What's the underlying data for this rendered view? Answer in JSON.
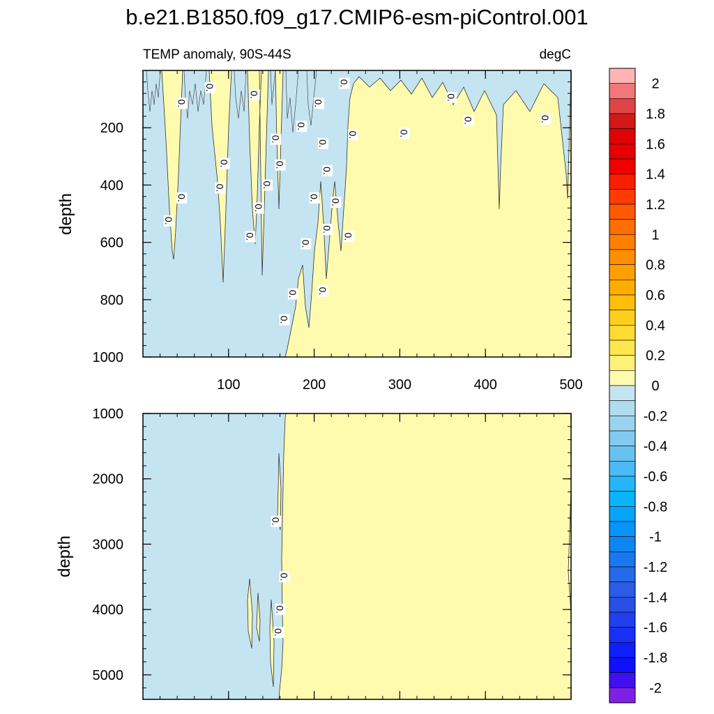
{
  "chart_data": {
    "type": "contour",
    "title": "b.e21.B1850.f09_g17.CMIP6-esm-piControl.001",
    "subtitle_left": "TEMP anomaly, 90S-44S",
    "subtitle_right": "degC",
    "xlim": [
      0,
      500
    ],
    "x_ticks": [
      100,
      200,
      300,
      400,
      500
    ],
    "x_tick_labels": [
      "100",
      "200",
      "300",
      "400",
      "500"
    ],
    "panels": [
      {
        "name": "upper",
        "ylabel": "depth",
        "ylim": [
          0,
          1000
        ],
        "y_ticks": [
          200,
          400,
          600,
          800,
          1000
        ],
        "y_tick_labels": [
          "200",
          "400",
          "600",
          "800",
          "1000"
        ],
        "regions": [
          {
            "value_range": "-0.1 to 0",
            "description": "negative anomaly",
            "x_from": 0,
            "x_to": 165
          },
          {
            "value_range": "0 to 0.1",
            "description": "positive anomaly",
            "x_from": 165,
            "x_to": 500
          }
        ],
        "contour_labels": [
          {
            "text": "0.",
            "x": 45,
            "y": 115
          },
          {
            "text": "0.",
            "x": 78,
            "y": 60
          },
          {
            "text": "0.",
            "x": 130,
            "y": 85
          },
          {
            "text": "0.",
            "x": 235,
            "y": 45
          },
          {
            "text": "0.",
            "x": 360,
            "y": 95
          },
          {
            "text": "0.",
            "x": 205,
            "y": 115
          },
          {
            "text": "0.",
            "x": 185,
            "y": 195
          },
          {
            "text": "0.",
            "x": 155,
            "y": 240
          },
          {
            "text": "0.",
            "x": 245,
            "y": 225
          },
          {
            "text": "0.",
            "x": 305,
            "y": 220
          },
          {
            "text": "0.",
            "x": 380,
            "y": 175
          },
          {
            "text": "0.",
            "x": 470,
            "y": 170
          },
          {
            "text": "0.",
            "x": 95,
            "y": 325
          },
          {
            "text": "0.",
            "x": 160,
            "y": 330
          },
          {
            "text": "0.",
            "x": 210,
            "y": 255
          },
          {
            "text": "0.",
            "x": 215,
            "y": 350
          },
          {
            "text": "0.",
            "x": 90,
            "y": 410
          },
          {
            "text": "0.",
            "x": 145,
            "y": 400
          },
          {
            "text": "0.",
            "x": 45,
            "y": 445
          },
          {
            "text": "0.",
            "x": 200,
            "y": 445
          },
          {
            "text": "0.",
            "x": 225,
            "y": 460
          },
          {
            "text": "0.",
            "x": 30,
            "y": 525
          },
          {
            "text": "0.",
            "x": 135,
            "y": 480
          },
          {
            "text": "0.",
            "x": 215,
            "y": 555
          },
          {
            "text": "0.",
            "x": 125,
            "y": 580
          },
          {
            "text": "0.",
            "x": 240,
            "y": 580
          },
          {
            "text": "0.",
            "x": 190,
            "y": 605
          },
          {
            "text": "0.",
            "x": 175,
            "y": 780
          },
          {
            "text": "0.",
            "x": 210,
            "y": 770
          },
          {
            "text": "0.",
            "x": 165,
            "y": 870
          }
        ]
      },
      {
        "name": "lower",
        "ylabel": "depth",
        "ylim": [
          1000,
          5375
        ],
        "y_ticks": [
          1000,
          2000,
          3000,
          4000,
          5000
        ],
        "y_tick_labels": [
          "1000",
          "2000",
          "3000",
          "4000",
          "5000"
        ],
        "regions": [
          {
            "value_range": "-0.1 to 0",
            "description": "negative anomaly",
            "x_from": 0,
            "x_to": 165
          },
          {
            "value_range": "0 to 0.1",
            "description": "positive anomaly",
            "x_from": 165,
            "x_to": 500
          }
        ],
        "contour_labels": [
          {
            "text": "0.",
            "x": 155,
            "y": 2650
          },
          {
            "text": "0.",
            "x": 165,
            "y": 3500
          },
          {
            "text": "0.",
            "x": 160,
            "y": 4000
          },
          {
            "text": "0.",
            "x": 158,
            "y": 4350
          }
        ]
      }
    ],
    "colorbar": {
      "label_values": [
        "2",
        "1.8",
        "1.6",
        "1.4",
        "1.2",
        "1",
        "0.8",
        "0.6",
        "0.4",
        "0.2",
        "0",
        "-0.2",
        "-0.4",
        "-0.6",
        "-0.8",
        "-1",
        "-1.2",
        "-1.4",
        "-1.6",
        "-1.8",
        "-2"
      ],
      "colors": [
        "#feb4b4",
        "#f07878",
        "#e04545",
        "#d21818",
        "#dc0404",
        "#e60000",
        "#f00000",
        "#fa1e00",
        "#ff3c00",
        "#ff5a00",
        "#ff6e00",
        "#ff7f00",
        "#ff8f00",
        "#ffa000",
        "#ffae00",
        "#ffbe0a",
        "#ffce1e",
        "#ffdc32",
        "#ffe650",
        "#fff078",
        "#fefbaf",
        "#c5e4f2",
        "#b0dcf0",
        "#9ad3ef",
        "#82caf0",
        "#68c2f0",
        "#4cbaf4",
        "#24b6f8",
        "#0ab4fa",
        "#08a4fa",
        "#0894f8",
        "#0e86f2",
        "#1a78ee",
        "#246aea",
        "#2a5ce6",
        "#2850e6",
        "#2040ee",
        "#1830f6",
        "#1020fc",
        "#1010fa",
        "#4010ee",
        "#8020e6"
      ]
    }
  }
}
